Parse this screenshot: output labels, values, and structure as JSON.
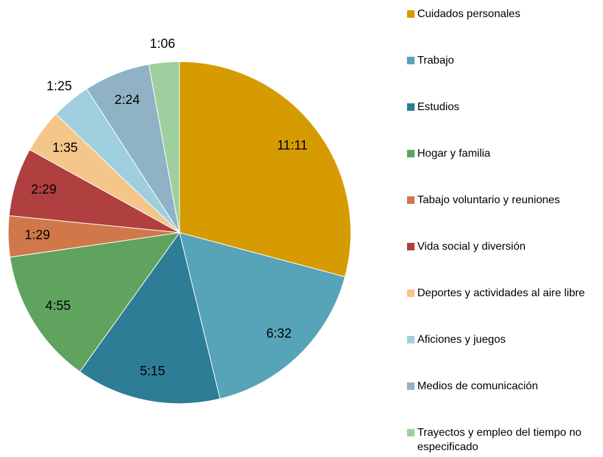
{
  "chart_data": {
    "type": "pie",
    "categories": [
      "Cuidados personales",
      "Trabajo",
      "Estudios",
      "Hogar y familia",
      "Tabajo voluntario y reuniones",
      "Vida social y diversión",
      "Deportes y actividades al aire libre",
      "Aficiones y juegos",
      "Medios de comunicación",
      "Trayectos y empleo del tiempo no especificado"
    ],
    "values": [
      671,
      392,
      315,
      295,
      89,
      149,
      95,
      85,
      144,
      66
    ],
    "value_labels": [
      "11:11",
      "6:32",
      "5:15",
      "4:55",
      "1:29",
      "2:29",
      "1:35",
      "1:25",
      "2:24",
      "1:06"
    ],
    "colors": [
      "#d59b00",
      "#57a3b8",
      "#2e7d96",
      "#5fa35f",
      "#d0784a",
      "#b04040",
      "#f4c68a",
      "#9fcfdf",
      "#8fb3c4",
      "#a0cf9f"
    ],
    "legend": "right"
  }
}
